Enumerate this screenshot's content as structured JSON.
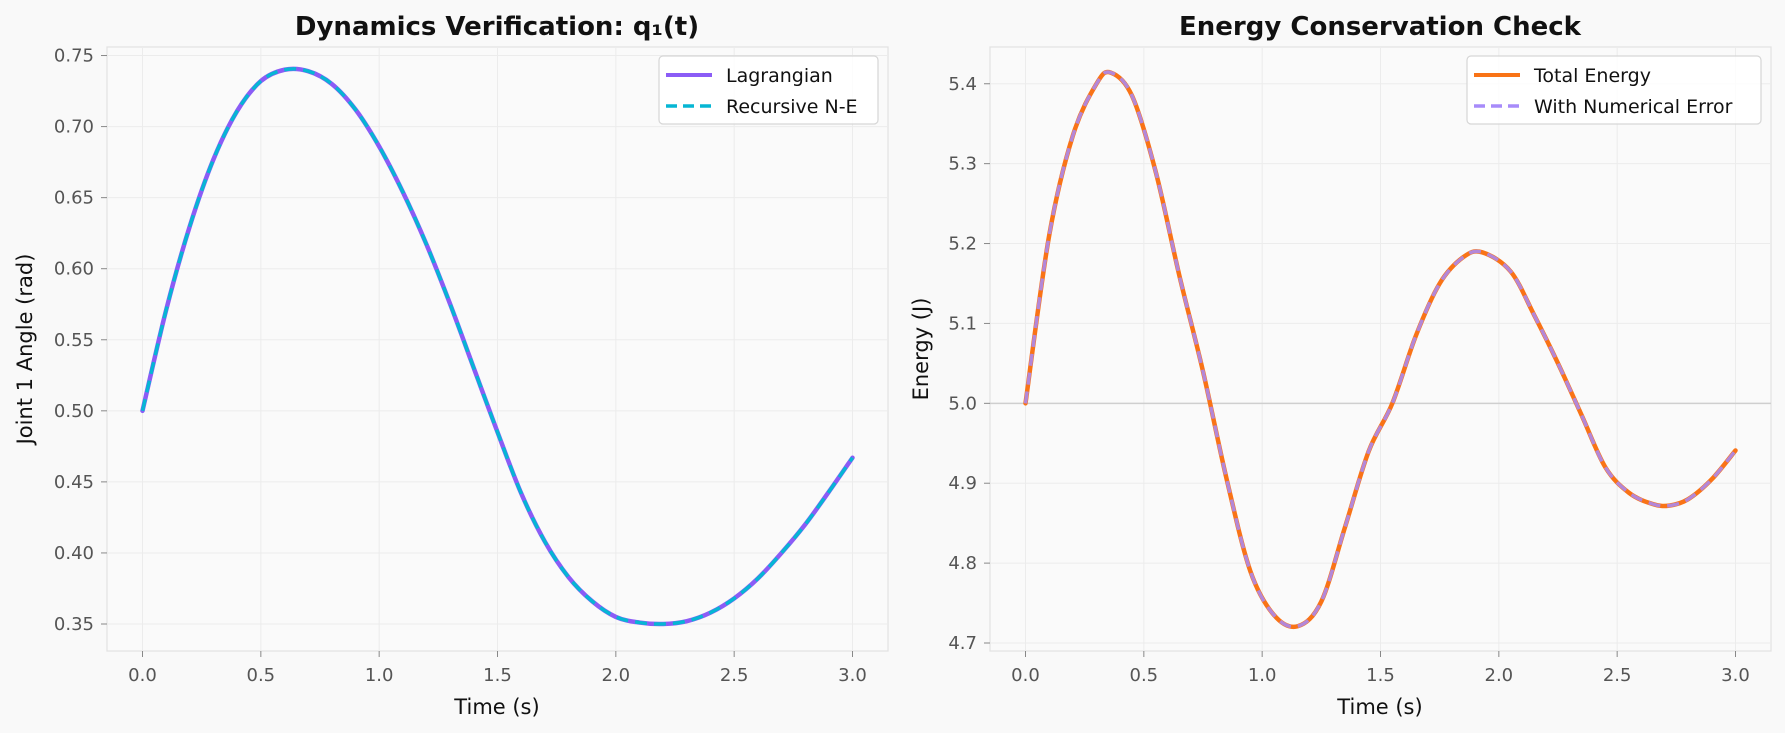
{
  "chart_data": [
    {
      "type": "line",
      "title": "Dynamics Verification: q₁(t)",
      "xlabel": "Time (s)",
      "ylabel": "Joint 1 Angle (rad)",
      "xlim": [
        -0.15,
        3.15
      ],
      "ylim": [
        0.331,
        0.756
      ],
      "xticks": [
        "0.0",
        "0.5",
        "1.0",
        "1.5",
        "2.0",
        "2.5",
        "3.0"
      ],
      "yticks": [
        "0.35",
        "0.40",
        "0.45",
        "0.50",
        "0.55",
        "0.60",
        "0.65",
        "0.70",
        "0.75"
      ],
      "grid": true,
      "legend_position": "top-right",
      "series": [
        {
          "name": "Lagrangian",
          "color": "#8b5cf6",
          "style": "solid",
          "x": [
            0,
            0.1,
            0.2,
            0.3,
            0.4,
            0.5,
            0.6,
            0.7,
            0.8,
            0.9,
            1.0,
            1.1,
            1.2,
            1.3,
            1.4,
            1.5,
            1.6,
            1.7,
            1.8,
            1.9,
            2.0,
            2.1,
            2.2,
            2.3,
            2.4,
            2.5,
            2.6,
            2.7,
            2.8,
            2.9,
            3.0
          ],
          "y": [
            0.5,
            0.571,
            0.63,
            0.677,
            0.711,
            0.732,
            0.74,
            0.739,
            0.73,
            0.712,
            0.686,
            0.654,
            0.617,
            0.575,
            0.53,
            0.485,
            0.442,
            0.408,
            0.383,
            0.366,
            0.355,
            0.351,
            0.35,
            0.352,
            0.358,
            0.368,
            0.382,
            0.4,
            0.42,
            0.443,
            0.467
          ]
        },
        {
          "name": "Recursive N-E",
          "color": "#06b6d4",
          "style": "dashed",
          "x": [
            0,
            0.1,
            0.2,
            0.3,
            0.4,
            0.5,
            0.6,
            0.7,
            0.8,
            0.9,
            1.0,
            1.1,
            1.2,
            1.3,
            1.4,
            1.5,
            1.6,
            1.7,
            1.8,
            1.9,
            2.0,
            2.1,
            2.2,
            2.3,
            2.4,
            2.5,
            2.6,
            2.7,
            2.8,
            2.9,
            3.0
          ],
          "y": [
            0.5,
            0.571,
            0.63,
            0.677,
            0.711,
            0.732,
            0.74,
            0.739,
            0.73,
            0.712,
            0.686,
            0.654,
            0.617,
            0.575,
            0.53,
            0.485,
            0.442,
            0.408,
            0.383,
            0.366,
            0.355,
            0.351,
            0.35,
            0.352,
            0.358,
            0.368,
            0.382,
            0.4,
            0.42,
            0.443,
            0.467
          ]
        }
      ]
    },
    {
      "type": "line",
      "title": "Energy Conservation Check",
      "xlabel": "Time (s)",
      "ylabel": "Energy (J)",
      "xlim": [
        -0.15,
        3.15
      ],
      "ylim": [
        4.69,
        5.446
      ],
      "xticks": [
        "0.0",
        "0.5",
        "1.0",
        "1.5",
        "2.0",
        "2.5",
        "3.0"
      ],
      "yticks": [
        "4.7",
        "4.8",
        "4.9",
        "5.0",
        "5.1",
        "5.2",
        "5.3",
        "5.4"
      ],
      "hline": 5.0,
      "grid": true,
      "legend_position": "top-right",
      "series": [
        {
          "name": "Total Energy",
          "color": "#f97316",
          "style": "solid",
          "x": [
            0,
            0.1,
            0.2,
            0.3,
            0.36,
            0.45,
            0.55,
            0.65,
            0.75,
            0.85,
            0.95,
            1.05,
            1.15,
            1.25,
            1.35,
            1.45,
            1.55,
            1.65,
            1.75,
            1.85,
            1.93,
            2.05,
            2.15,
            2.25,
            2.35,
            2.45,
            2.55,
            2.65,
            2.72,
            2.8,
            2.9,
            3.0
          ],
          "y": [
            5.0,
            5.21,
            5.335,
            5.4,
            5.414,
            5.385,
            5.29,
            5.16,
            5.04,
            4.905,
            4.79,
            4.735,
            4.721,
            4.752,
            4.845,
            4.94,
            5.0,
            5.085,
            5.15,
            5.183,
            5.189,
            5.165,
            5.11,
            5.05,
            4.985,
            4.92,
            4.888,
            4.874,
            4.872,
            4.88,
            4.905,
            4.941
          ]
        },
        {
          "name": "With Numerical Error",
          "color": "#a78bfa",
          "style": "dashed",
          "x": [
            0,
            0.1,
            0.2,
            0.3,
            0.36,
            0.45,
            0.55,
            0.65,
            0.75,
            0.85,
            0.95,
            1.05,
            1.15,
            1.25,
            1.35,
            1.45,
            1.55,
            1.65,
            1.75,
            1.85,
            1.93,
            2.05,
            2.15,
            2.25,
            2.35,
            2.45,
            2.55,
            2.65,
            2.72,
            2.8,
            2.9,
            3.0
          ],
          "y": [
            5.0,
            5.21,
            5.335,
            5.4,
            5.414,
            5.385,
            5.29,
            5.16,
            5.04,
            4.905,
            4.79,
            4.735,
            4.721,
            4.752,
            4.845,
            4.94,
            5.0,
            5.085,
            5.15,
            5.183,
            5.189,
            5.165,
            5.11,
            5.05,
            4.985,
            4.92,
            4.888,
            4.874,
            4.872,
            4.88,
            4.905,
            4.941
          ]
        }
      ]
    }
  ]
}
